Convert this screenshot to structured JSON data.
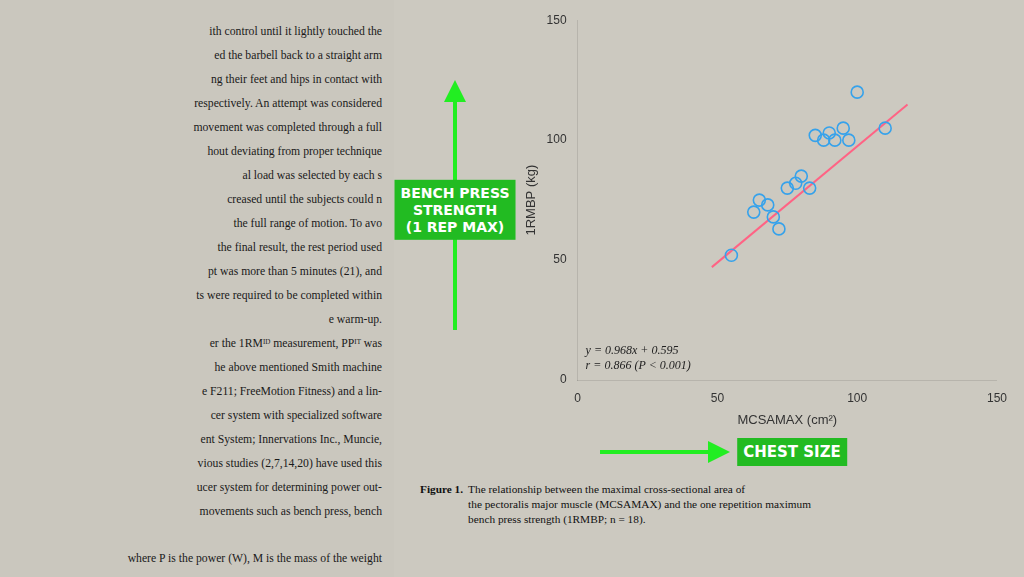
{
  "chart_data": {
    "type": "scatter",
    "xlabel": "MCSAMAX (cm²)",
    "ylabel": "1RMBP (kg)",
    "xlim": [
      0,
      150
    ],
    "ylim": [
      0,
      150
    ],
    "xticks": [
      0,
      50,
      100,
      150
    ],
    "yticks": [
      0,
      50,
      100,
      150
    ],
    "grid": false,
    "series": [
      {
        "type": "scatter",
        "marker": "circle",
        "x": [
          55,
          63,
          65,
          68,
          70,
          72,
          75,
          78,
          80,
          83,
          85,
          88,
          90,
          92,
          95,
          97,
          100,
          110
        ],
        "values": [
          52,
          70,
          75,
          73,
          68,
          63,
          80,
          82,
          85,
          80,
          102,
          100,
          103,
          100,
          105,
          100,
          120,
          105
        ]
      },
      {
        "type": "line",
        "line_style": "solid",
        "x": [
          48,
          118
        ],
        "values": [
          47.059,
          114.819
        ]
      }
    ],
    "annotations": [
      "y = 0.968x + 0.595\nr = 0.866 (P < 0.001)",
      "BENCH PRESS\nSTRENGTH\n(1 REP MAX)",
      "CHEST SIZE",
      "Figure 1.",
      "The relationship between the maximal cross-sectional area of\nthe pectoralis major muscle (MCSAMAX) and the one repetition maximum\nbench press strength (1RMBP; n = 18).",
      "ith control until it lightly touched the\ned the barbell back to a straight arm\nng their feet and hips in contact with\nrespectively. An attempt was considered\nmovement was completed through a full\nhout deviating from proper technique\nal load was selected by each s\ncreased until the subjects could n\nthe full range of motion. To avo\nthe final result, the rest period used\npt was more than 5 minutes (21), and\nts were required to be completed within\ne warm-up.\ner the 1RMᴵᴰ measurement, PPᴵᵀ was\nhe above mentioned Smith machine\ne F211; FreeMotion Fitness) and a lin-\ncer system with specialized software\nent System; Innervations Inc., Muncie,\nvious studies (2,7,14,20) have used this\nucer system for determining power out-\nmovements such as bench press, bench",
      "where P is the power (W), M is the mass of the weight"
    ]
  }
}
